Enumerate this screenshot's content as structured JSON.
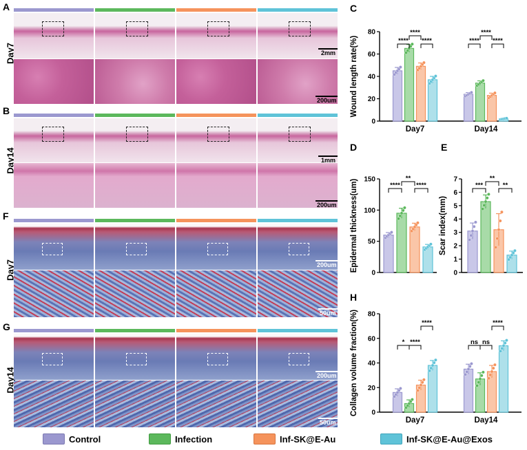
{
  "panels": {
    "A": {
      "label": "A",
      "row": "Day7",
      "scale_top": "2mm",
      "scale_bottom": "200um"
    },
    "B": {
      "label": "B",
      "row": "Day14",
      "scale_top": "1mm",
      "scale_bottom": "200um"
    },
    "F": {
      "label": "F",
      "row": "Day7",
      "scale_top": "200um",
      "scale_bottom": "50um"
    },
    "G": {
      "label": "G",
      "row": "Day14",
      "scale_top": "200um",
      "scale_bottom": "50um"
    },
    "C": {
      "label": "C"
    },
    "D": {
      "label": "D"
    },
    "E": {
      "label": "E"
    },
    "H": {
      "label": "H"
    }
  },
  "colors": {
    "control": "#9b98cf",
    "infection": "#5cb85c",
    "infsk": "#f5935c",
    "exos": "#5fc3d8"
  },
  "legend": [
    {
      "label": "Control",
      "color": "#9b98cf"
    },
    {
      "label": "Infection",
      "color": "#5cb85c"
    },
    {
      "label": "Inf-SK@E-Au",
      "color": "#f5935c"
    },
    {
      "label": "Inf-SK@E-Au@Exos",
      "color": "#5fc3d8"
    }
  ],
  "chart_data": [
    {
      "id": "C",
      "type": "bar",
      "ylabel": "Wound length rate(%)",
      "categories": [
        "Day7",
        "Day14"
      ],
      "ylim": [
        0,
        80
      ],
      "yticks": [
        "0",
        "20",
        "40",
        "60",
        "80"
      ],
      "series": [
        {
          "name": "Control",
          "values": [
            45,
            24
          ],
          "err": [
            3,
            1.5
          ]
        },
        {
          "name": "Infection",
          "values": [
            65,
            34
          ],
          "err": [
            3.5,
            2
          ]
        },
        {
          "name": "Inf-SK@E-Au",
          "values": [
            49,
            23
          ],
          "err": [
            3,
            2
          ]
        },
        {
          "name": "Inf-SK@E-Au@Exos",
          "values": [
            37,
            2
          ],
          "err": [
            3,
            0.5
          ]
        }
      ],
      "significance": [
        "****",
        "****",
        "****",
        "****",
        "****",
        "****"
      ]
    },
    {
      "id": "D",
      "type": "bar",
      "ylabel": "Epidermal thickness(um)",
      "categories": [
        ""
      ],
      "ylim": [
        0,
        150
      ],
      "yticks": [
        "0",
        "50",
        "100",
        "150"
      ],
      "series": [
        {
          "name": "Control",
          "values": [
            60
          ],
          "err": [
            4
          ]
        },
        {
          "name": "Infection",
          "values": [
            95
          ],
          "err": [
            8
          ]
        },
        {
          "name": "Inf-SK@E-Au",
          "values": [
            73
          ],
          "err": [
            6
          ]
        },
        {
          "name": "Inf-SK@E-Au@Exos",
          "values": [
            41
          ],
          "err": [
            4
          ]
        }
      ],
      "significance": [
        "****",
        "**",
        "****"
      ]
    },
    {
      "id": "E",
      "type": "bar",
      "ylabel": "Scar index(mm)",
      "categories": [
        ""
      ],
      "ylim": [
        0,
        7
      ],
      "yticks": [
        "0",
        "1",
        "2",
        "3",
        "4",
        "5",
        "6",
        "7"
      ],
      "series": [
        {
          "name": "Control",
          "values": [
            3.1
          ],
          "err": [
            0.6
          ]
        },
        {
          "name": "Infection",
          "values": [
            5.3
          ],
          "err": [
            0.5
          ]
        },
        {
          "name": "Inf-SK@E-Au",
          "values": [
            3.2
          ],
          "err": [
            1.2
          ]
        },
        {
          "name": "Inf-SK@E-Au@Exos",
          "values": [
            1.3
          ],
          "err": [
            0.3
          ]
        }
      ],
      "significance": [
        "***",
        "**",
        "**"
      ]
    },
    {
      "id": "H",
      "type": "bar",
      "ylabel": "Collagen volume fraction(%)",
      "categories": [
        "Day7",
        "Day14"
      ],
      "ylim": [
        0,
        80
      ],
      "yticks": [
        "0",
        "20",
        "40",
        "60",
        "80"
      ],
      "series": [
        {
          "name": "Control",
          "values": [
            16,
            35
          ],
          "err": [
            3,
            4
          ]
        },
        {
          "name": "Infection",
          "values": [
            7,
            27
          ],
          "err": [
            3,
            5
          ]
        },
        {
          "name": "Inf-SK@E-Au",
          "values": [
            22,
            33
          ],
          "err": [
            4,
            5
          ]
        },
        {
          "name": "Inf-SK@E-Au@Exos",
          "values": [
            38,
            54
          ],
          "err": [
            4,
            4
          ]
        }
      ],
      "significance": [
        "*",
        "****",
        "****",
        "ns",
        "ns",
        "****"
      ]
    }
  ]
}
